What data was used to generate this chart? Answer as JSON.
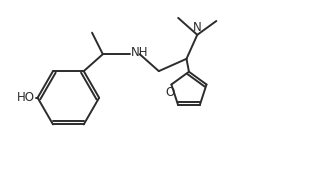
{
  "background": "#ffffff",
  "line_color": "#2c2c2c",
  "line_width": 1.4,
  "font_size": 8.5,
  "figsize": [
    3.09,
    1.74
  ],
  "dpi": 100,
  "xlim": [
    0,
    10
  ],
  "ylim": [
    0,
    5.5
  ]
}
